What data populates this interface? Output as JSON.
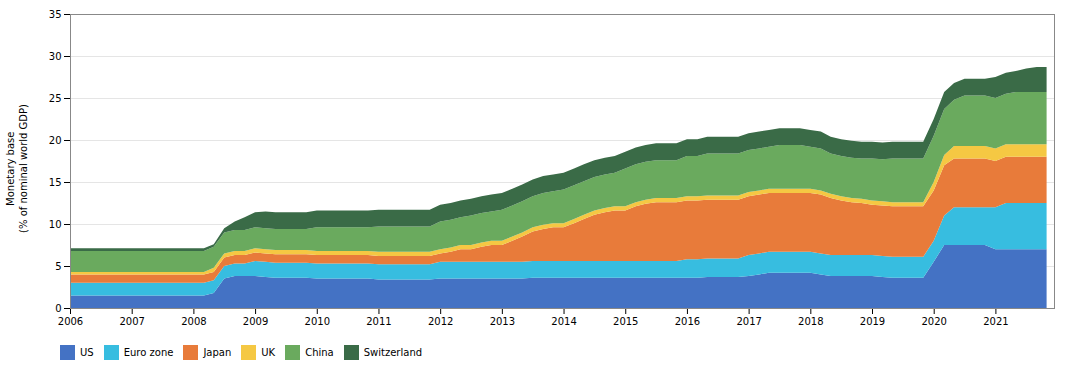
{
  "chart_data": {
    "type": "area",
    "stacked": true,
    "ylabel": "Monetary base\n(% of nominal world GDP)",
    "ylim": [
      0,
      35
    ],
    "yticks": [
      0,
      5,
      10,
      15,
      20,
      25,
      30,
      35
    ],
    "xlim": [
      2006,
      2021.95
    ],
    "xticks": [
      2006,
      2007,
      2008,
      2009,
      2010,
      2011,
      2012,
      2013,
      2014,
      2015,
      2016,
      2017,
      2018,
      2019,
      2020,
      2021
    ],
    "grid": true,
    "legend": "bottom",
    "x": [
      2006.0,
      2006.17,
      2006.33,
      2006.5,
      2006.67,
      2006.83,
      2007.0,
      2007.17,
      2007.33,
      2007.5,
      2007.67,
      2007.83,
      2008.0,
      2008.17,
      2008.33,
      2008.5,
      2008.67,
      2008.83,
      2009.0,
      2009.17,
      2009.33,
      2009.5,
      2009.67,
      2009.83,
      2010.0,
      2010.17,
      2010.33,
      2010.5,
      2010.67,
      2010.83,
      2011.0,
      2011.17,
      2011.33,
      2011.5,
      2011.67,
      2011.83,
      2012.0,
      2012.17,
      2012.33,
      2012.5,
      2012.67,
      2012.83,
      2013.0,
      2013.17,
      2013.33,
      2013.5,
      2013.67,
      2013.83,
      2014.0,
      2014.17,
      2014.33,
      2014.5,
      2014.67,
      2014.83,
      2015.0,
      2015.17,
      2015.33,
      2015.5,
      2015.67,
      2015.83,
      2016.0,
      2016.17,
      2016.33,
      2016.5,
      2016.67,
      2016.83,
      2017.0,
      2017.17,
      2017.33,
      2017.5,
      2017.67,
      2017.83,
      2018.0,
      2018.17,
      2018.33,
      2018.5,
      2018.67,
      2018.83,
      2019.0,
      2019.17,
      2019.33,
      2019.5,
      2019.67,
      2019.83,
      2020.0,
      2020.17,
      2020.33,
      2020.5,
      2020.67,
      2020.83,
      2021.0,
      2021.17,
      2021.33,
      2021.5,
      2021.67,
      2021.83
    ],
    "series": [
      {
        "name": "US",
        "color": "#4472c4",
        "values": [
          1.5,
          1.5,
          1.5,
          1.5,
          1.5,
          1.5,
          1.5,
          1.5,
          1.5,
          1.5,
          1.5,
          1.5,
          1.5,
          1.5,
          1.8,
          3.5,
          3.8,
          3.8,
          3.8,
          3.7,
          3.6,
          3.6,
          3.6,
          3.6,
          3.5,
          3.5,
          3.5,
          3.5,
          3.5,
          3.5,
          3.4,
          3.4,
          3.4,
          3.4,
          3.4,
          3.4,
          3.5,
          3.5,
          3.5,
          3.5,
          3.5,
          3.5,
          3.5,
          3.5,
          3.5,
          3.6,
          3.6,
          3.6,
          3.6,
          3.6,
          3.6,
          3.6,
          3.6,
          3.6,
          3.6,
          3.6,
          3.6,
          3.6,
          3.6,
          3.6,
          3.6,
          3.6,
          3.7,
          3.7,
          3.7,
          3.7,
          3.8,
          4.0,
          4.2,
          4.2,
          4.2,
          4.2,
          4.2,
          4.0,
          3.8,
          3.8,
          3.8,
          3.8,
          3.8,
          3.7,
          3.6,
          3.6,
          3.6,
          3.6,
          5.5,
          7.5,
          7.5,
          7.5,
          7.5,
          7.5,
          7.0,
          7.0,
          7.0,
          7.0,
          7.0,
          7.0
        ]
      },
      {
        "name": "Euro zone",
        "color": "#37bde0",
        "values": [
          1.5,
          1.5,
          1.5,
          1.5,
          1.5,
          1.5,
          1.5,
          1.5,
          1.5,
          1.5,
          1.5,
          1.5,
          1.5,
          1.5,
          1.5,
          1.5,
          1.5,
          1.5,
          1.8,
          1.8,
          1.8,
          1.8,
          1.8,
          1.8,
          1.8,
          1.8,
          1.8,
          1.8,
          1.8,
          1.8,
          1.8,
          1.8,
          1.8,
          1.8,
          1.8,
          1.8,
          2.0,
          2.0,
          2.0,
          2.0,
          2.0,
          2.0,
          2.0,
          2.0,
          2.0,
          2.0,
          2.0,
          2.0,
          2.0,
          2.0,
          2.0,
          2.0,
          2.0,
          2.0,
          2.0,
          2.0,
          2.0,
          2.0,
          2.0,
          2.0,
          2.2,
          2.2,
          2.2,
          2.2,
          2.2,
          2.2,
          2.5,
          2.5,
          2.5,
          2.5,
          2.5,
          2.5,
          2.5,
          2.5,
          2.5,
          2.5,
          2.5,
          2.5,
          2.5,
          2.5,
          2.5,
          2.5,
          2.5,
          2.5,
          2.5,
          3.5,
          4.5,
          4.5,
          4.5,
          4.5,
          5.0,
          5.5,
          5.5,
          5.5,
          5.5,
          5.5
        ]
      },
      {
        "name": "Japan",
        "color": "#e87b3a",
        "values": [
          1.0,
          1.0,
          1.0,
          1.0,
          1.0,
          1.0,
          1.0,
          1.0,
          1.0,
          1.0,
          1.0,
          1.0,
          1.0,
          1.0,
          1.0,
          1.0,
          1.0,
          1.0,
          1.0,
          1.0,
          1.0,
          1.0,
          1.0,
          1.0,
          1.0,
          1.0,
          1.0,
          1.0,
          1.0,
          1.0,
          1.0,
          1.0,
          1.0,
          1.0,
          1.0,
          1.0,
          1.0,
          1.2,
          1.5,
          1.5,
          1.8,
          2.0,
          2.0,
          2.5,
          3.0,
          3.5,
          3.8,
          4.0,
          4.0,
          4.5,
          5.0,
          5.5,
          5.8,
          6.0,
          6.0,
          6.5,
          6.8,
          7.0,
          7.0,
          7.0,
          7.0,
          7.0,
          7.0,
          7.0,
          7.0,
          7.0,
          7.0,
          7.0,
          7.0,
          7.0,
          7.0,
          7.0,
          7.0,
          7.0,
          6.8,
          6.5,
          6.3,
          6.2,
          6.0,
          6.0,
          6.0,
          6.0,
          6.0,
          6.0,
          6.0,
          6.0,
          5.8,
          5.8,
          5.8,
          5.8,
          5.5,
          5.5,
          5.5,
          5.5,
          5.5,
          5.5
        ]
      },
      {
        "name": "UK",
        "color": "#f5c843",
        "values": [
          0.3,
          0.3,
          0.3,
          0.3,
          0.3,
          0.3,
          0.3,
          0.3,
          0.3,
          0.3,
          0.3,
          0.3,
          0.3,
          0.3,
          0.5,
          0.5,
          0.5,
          0.5,
          0.5,
          0.5,
          0.5,
          0.5,
          0.5,
          0.5,
          0.5,
          0.5,
          0.5,
          0.5,
          0.5,
          0.5,
          0.5,
          0.5,
          0.5,
          0.5,
          0.5,
          0.5,
          0.5,
          0.5,
          0.5,
          0.5,
          0.5,
          0.5,
          0.5,
          0.5,
          0.5,
          0.5,
          0.5,
          0.5,
          0.5,
          0.5,
          0.5,
          0.5,
          0.5,
          0.5,
          0.5,
          0.5,
          0.5,
          0.5,
          0.5,
          0.5,
          0.5,
          0.5,
          0.5,
          0.5,
          0.5,
          0.5,
          0.5,
          0.5,
          0.5,
          0.5,
          0.5,
          0.5,
          0.5,
          0.5,
          0.5,
          0.5,
          0.5,
          0.5,
          0.5,
          0.5,
          0.5,
          0.5,
          0.5,
          0.5,
          1.0,
          1.2,
          1.5,
          1.5,
          1.5,
          1.5,
          1.5,
          1.5,
          1.5,
          1.5,
          1.5,
          1.5
        ]
      },
      {
        "name": "China",
        "color": "#6aaa5e",
        "values": [
          2.5,
          2.5,
          2.5,
          2.5,
          2.5,
          2.5,
          2.5,
          2.5,
          2.5,
          2.5,
          2.5,
          2.5,
          2.5,
          2.5,
          2.5,
          2.5,
          2.5,
          2.5,
          2.5,
          2.5,
          2.5,
          2.5,
          2.5,
          2.5,
          2.8,
          2.8,
          2.8,
          2.8,
          2.8,
          2.8,
          3.0,
          3.0,
          3.0,
          3.0,
          3.0,
          3.0,
          3.3,
          3.3,
          3.3,
          3.5,
          3.5,
          3.5,
          3.7,
          3.7,
          3.7,
          3.7,
          3.8,
          3.8,
          4.0,
          4.0,
          4.0,
          4.0,
          4.0,
          4.0,
          4.5,
          4.5,
          4.5,
          4.5,
          4.5,
          4.5,
          4.8,
          4.8,
          5.0,
          5.0,
          5.0,
          5.0,
          5.0,
          5.0,
          5.0,
          5.2,
          5.2,
          5.2,
          5.0,
          5.0,
          4.8,
          4.8,
          4.8,
          4.8,
          5.0,
          5.0,
          5.2,
          5.2,
          5.2,
          5.2,
          5.5,
          5.5,
          5.5,
          6.0,
          6.0,
          6.0,
          6.0,
          6.0,
          6.2,
          6.2,
          6.2,
          6.2
        ]
      },
      {
        "name": "Switzerland",
        "color": "#3a6b47",
        "values": [
          0.3,
          0.3,
          0.3,
          0.3,
          0.3,
          0.3,
          0.3,
          0.3,
          0.3,
          0.3,
          0.3,
          0.3,
          0.3,
          0.3,
          0.3,
          0.5,
          1.0,
          1.5,
          1.8,
          2.0,
          2.0,
          2.0,
          2.0,
          2.0,
          2.0,
          2.0,
          2.0,
          2.0,
          2.0,
          2.0,
          2.0,
          2.0,
          2.0,
          2.0,
          2.0,
          2.0,
          2.0,
          2.0,
          2.0,
          2.0,
          2.0,
          2.0,
          2.0,
          2.0,
          2.0,
          2.0,
          2.0,
          2.0,
          2.0,
          2.0,
          2.0,
          2.0,
          2.0,
          2.0,
          2.0,
          2.0,
          2.0,
          2.0,
          2.0,
          2.0,
          2.0,
          2.0,
          2.0,
          2.0,
          2.0,
          2.0,
          2.0,
          2.0,
          2.0,
          2.0,
          2.0,
          2.0,
          2.0,
          2.0,
          2.0,
          2.0,
          2.0,
          2.0,
          2.0,
          2.0,
          2.0,
          2.0,
          2.0,
          2.0,
          2.0,
          2.0,
          2.0,
          2.0,
          2.0,
          2.0,
          2.5,
          2.5,
          2.5,
          2.8,
          3.0,
          3.0
        ]
      }
    ]
  }
}
